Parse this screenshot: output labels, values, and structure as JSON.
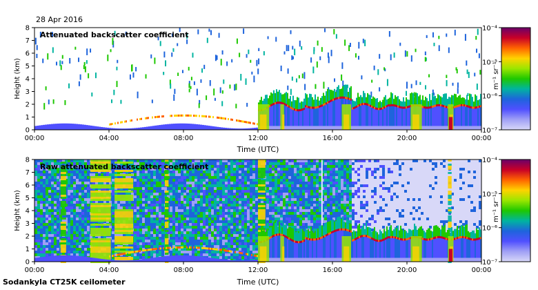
{
  "date": "28 Apr 2016",
  "footer": "Sodankyla CT25K ceilometer",
  "colorbar": {
    "unit": "m⁻¹ sr⁻¹",
    "ticks": [
      "10⁻⁴",
      "10⁻⁵",
      "10⁻⁶",
      "10⁻⁷"
    ],
    "colors": [
      "#6a006a",
      "#c80028",
      "#ff6400",
      "#ffd200",
      "#9be600",
      "#1ec800",
      "#00b4a0",
      "#1e64dc",
      "#5050ff",
      "#a0a0f5",
      "#d8d8f8"
    ]
  },
  "chart_data": [
    {
      "type": "heatmap",
      "title": "Attenuated backscatter coefficient",
      "xlabel": "Time (UTC)",
      "ylabel": "Height (km)",
      "x_ticks": [
        "00:00",
        "04:00",
        "08:00",
        "12:00",
        "16:00",
        "20:00",
        "00:00"
      ],
      "y_ticks": [
        0,
        1,
        2,
        3,
        4,
        5,
        6,
        7,
        8
      ],
      "ylim": [
        0,
        8
      ],
      "color_scale": "log",
      "clim": [
        1e-07,
        0.0001
      ]
    },
    {
      "type": "heatmap",
      "title": "Raw attenuated backscatter coefficient",
      "xlabel": "Time (UTC)",
      "ylabel": "Height (km)",
      "x_ticks": [
        "00:00",
        "04:00",
        "08:00",
        "12:00",
        "16:00",
        "20:00",
        "00:00"
      ],
      "y_ticks": [
        0,
        1,
        2,
        3,
        4,
        5,
        6,
        7,
        8
      ],
      "ylim": [
        0,
        8
      ],
      "color_scale": "log",
      "clim": [
        1e-07,
        0.0001
      ]
    }
  ]
}
